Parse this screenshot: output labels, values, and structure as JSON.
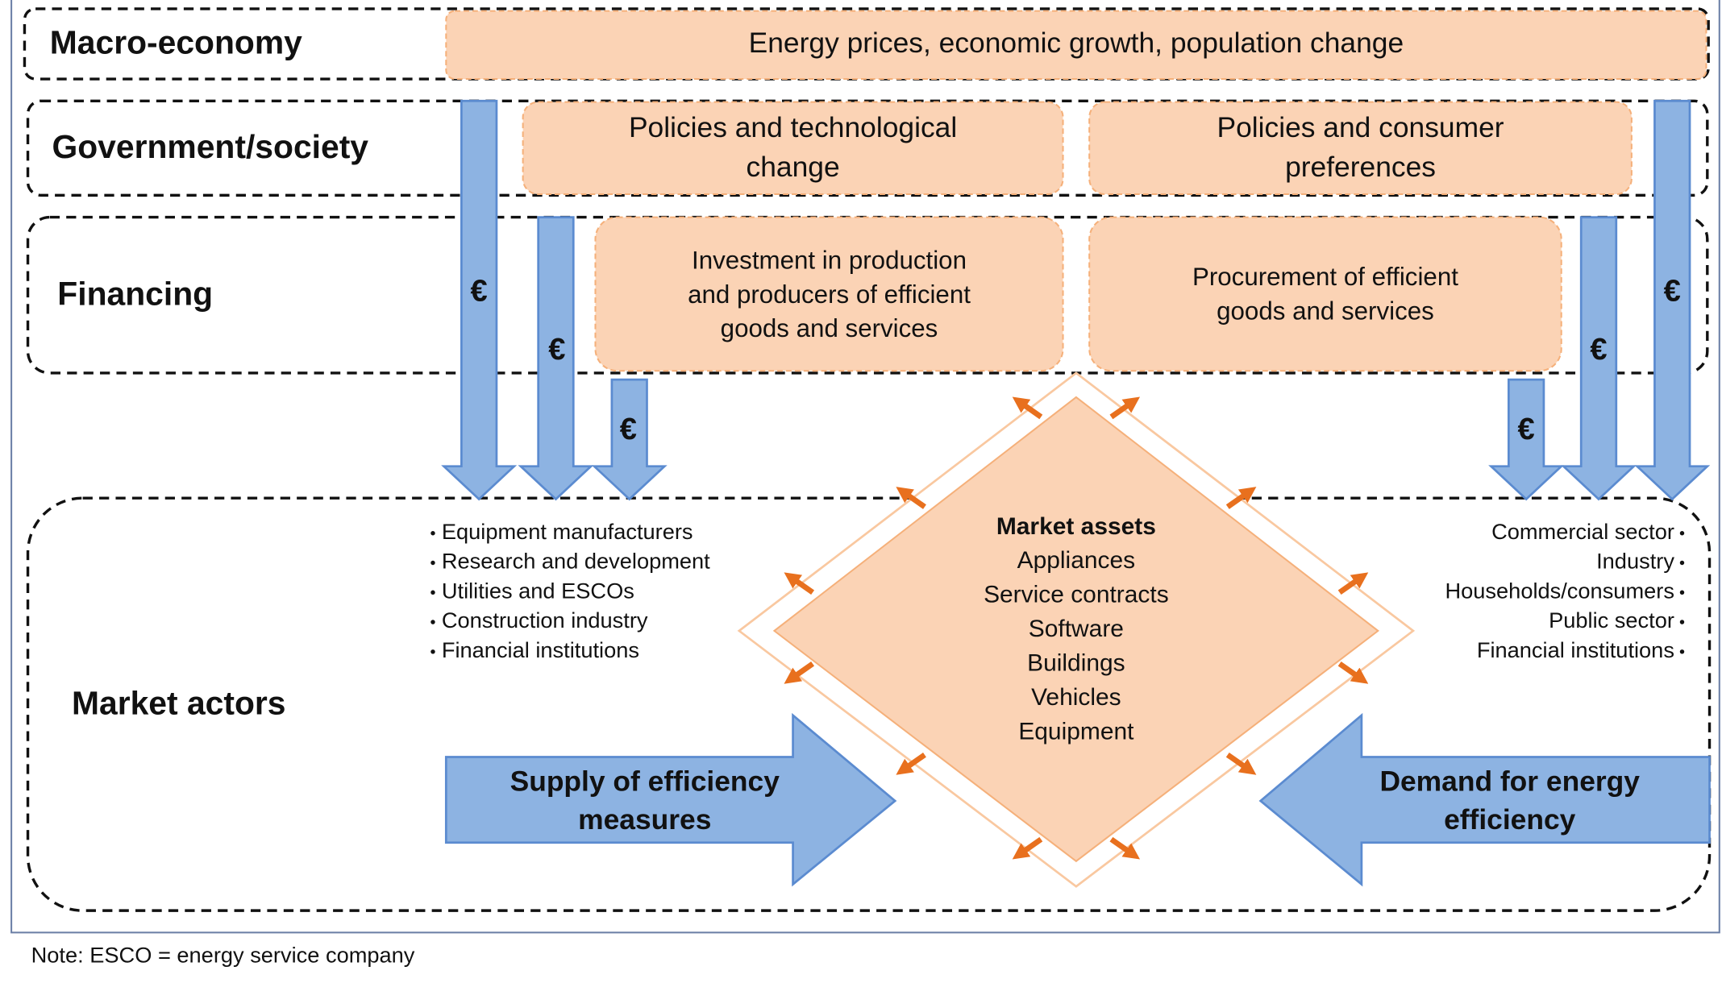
{
  "rows": [
    {
      "label": "Macro-economy"
    },
    {
      "label": "Government/society"
    },
    {
      "label": "Financing"
    },
    {
      "label": "Market actors"
    }
  ],
  "macro_box": "Energy prices, economic growth, population change",
  "government_boxes": [
    {
      "lines": [
        "Policies and technological",
        "change"
      ]
    },
    {
      "lines": [
        "Policies and consumer",
        "preferences"
      ]
    }
  ],
  "financing_boxes": [
    {
      "lines": [
        "Investment in production",
        "and producers of efficient",
        "goods and services"
      ]
    },
    {
      "lines": [
        "Procurement of efficient",
        "goods and services"
      ]
    }
  ],
  "funding_arrows": [
    "€",
    "€",
    "€",
    "€",
    "€",
    "€"
  ],
  "supply_actors": [
    "Equipment manufacturers",
    "Research and development",
    "Utilities and ESCOs",
    "Construction industry",
    "Financial institutions"
  ],
  "demand_actors": [
    "Commercial sector",
    "Industry",
    "Households/consumers",
    "Public sector",
    "Financial institutions"
  ],
  "market_assets": {
    "title": "Market assets",
    "items": [
      "Appliances",
      "Service contracts",
      "Software",
      "Buildings",
      "Vehicles",
      "Equipment"
    ]
  },
  "supply_arrow": {
    "lines": [
      "Supply of efficiency",
      "measures"
    ]
  },
  "demand_arrow": {
    "lines": [
      "Demand for energy",
      "efficiency"
    ]
  },
  "note": "Note: ESCO = energy service company"
}
